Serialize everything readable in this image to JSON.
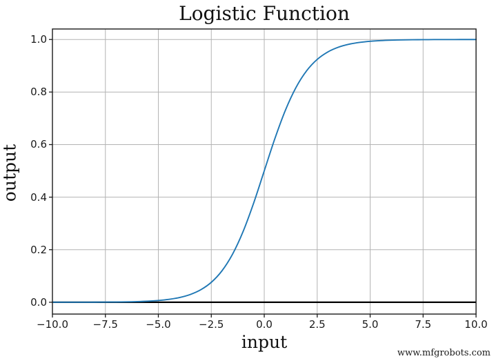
{
  "watermark": {
    "text": "www.mfgrobots.com"
  },
  "chart_data": {
    "type": "line",
    "title": "Logistic Function",
    "xlabel": "input",
    "ylabel": "output",
    "xlim": [
      -10,
      10
    ],
    "ylim": [
      -0.045,
      1.04
    ],
    "x_ticks": [
      -10.0,
      -7.5,
      -5.0,
      -2.5,
      0.0,
      2.5,
      5.0,
      7.5,
      10.0
    ],
    "x_tick_labels": [
      "−10.0",
      "−7.5",
      "−5.0",
      "−2.5",
      "0.0",
      "2.5",
      "5.0",
      "7.5",
      "10.0"
    ],
    "y_ticks": [
      0.0,
      0.2,
      0.4,
      0.6,
      0.8,
      1.0
    ],
    "y_tick_labels": [
      "0.0",
      "0.2",
      "0.4",
      "0.6",
      "0.8",
      "1.0"
    ],
    "grid": true,
    "grid_color": "#b3b3b3",
    "axis_color": "#1a1a1a",
    "background_color": "#ffffff",
    "legend": "none",
    "hline": {
      "y": 0.0,
      "color": "#000000"
    },
    "series": [
      {
        "color": "#1f77b4",
        "x": [
          -10,
          -9.5,
          -9,
          -8.5,
          -8,
          -7.5,
          -7,
          -6.5,
          -6,
          -5.5,
          -5,
          -4.5,
          -4,
          -3.5,
          -3,
          -2.5,
          -2,
          -1.5,
          -1,
          -0.5,
          0,
          0.5,
          1,
          1.5,
          2,
          2.5,
          3,
          3.5,
          4,
          4.5,
          5,
          5.5,
          6,
          6.5,
          7,
          7.5,
          8,
          8.5,
          9,
          9.5,
          10
        ],
        "y": [
          5e-05,
          7e-05,
          0.00012,
          0.0002,
          0.00034,
          0.00055,
          0.00091,
          0.0015,
          0.00247,
          0.00407,
          0.00669,
          0.01099,
          0.01799,
          0.02931,
          0.04743,
          0.07586,
          0.1192,
          0.18243,
          0.26894,
          0.37754,
          0.5,
          0.62246,
          0.73106,
          0.81757,
          0.8808,
          0.92414,
          0.95257,
          0.97069,
          0.98201,
          0.98901,
          0.99331,
          0.99593,
          0.99753,
          0.9985,
          0.99909,
          0.99945,
          0.99966,
          0.9998,
          0.99988,
          0.99993,
          0.99995
        ]
      }
    ]
  }
}
